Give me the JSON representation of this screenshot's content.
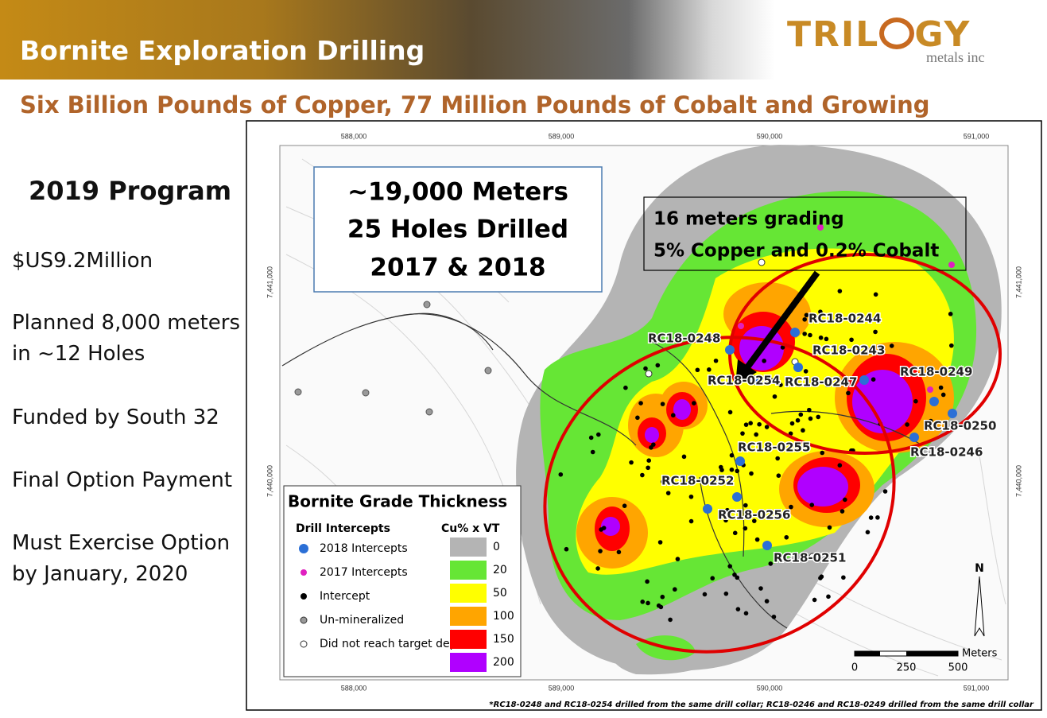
{
  "header": {
    "title": "Bornite Exploration Drilling",
    "logo_left": "TRIL",
    "logo_right": "GY",
    "logo_sub": "metals inc"
  },
  "subtitle": "Six Billion Pounds of Copper, 77 Million Pounds of Cobalt and Growing",
  "sidebar": {
    "heading": "2019 Program",
    "items": [
      [
        "$US9.2Million"
      ],
      [
        "Planned 8,000 meters",
        "in ~12 Holes"
      ],
      [
        "Funded by South 32"
      ],
      [
        "Final Option Payment"
      ],
      [
        "Must Exercise Option",
        "by January, 2020"
      ]
    ]
  },
  "map": {
    "easting_labels": [
      "588,000",
      "589,000",
      "590,000",
      "591,000"
    ],
    "northing_labels": [
      "7,441,000",
      "7,440,000"
    ],
    "callout": [
      "~19,000 Meters",
      "25 Holes Drilled",
      "2017 & 2018"
    ],
    "annotation": [
      "16 meters grading",
      "5% Copper and 0.2% Cobalt"
    ],
    "holes": [
      "RC18-0248",
      "RC18-0254",
      "RC18-0244",
      "RC18-0243",
      "RC18-0247",
      "RC18-0249",
      "RC18-0250",
      "RC18-0246",
      "RC18-0255",
      "RC18-0252",
      "RC18-0256",
      "RC18-0251"
    ],
    "legend": {
      "title": "Bornite Grade Thickness",
      "symbols_heading": "Drill Intercepts",
      "grade_heading": "Cu% x VT",
      "symbols": [
        "2018 Intercepts",
        "2017 Intercepts",
        "Intercept",
        "Un-mineralized",
        "Did not reach target depth"
      ],
      "grades": [
        "0",
        "20",
        "50",
        "100",
        "150",
        "200"
      ]
    },
    "scale": [
      "0",
      "250",
      "500"
    ],
    "scale_unit": "Meters",
    "north": "N",
    "footnote": "*RC18-0248 and RC18-0254 drilled from the same drill collar; RC18-0246 and RC18-0249 drilled from the same drill collar"
  }
}
